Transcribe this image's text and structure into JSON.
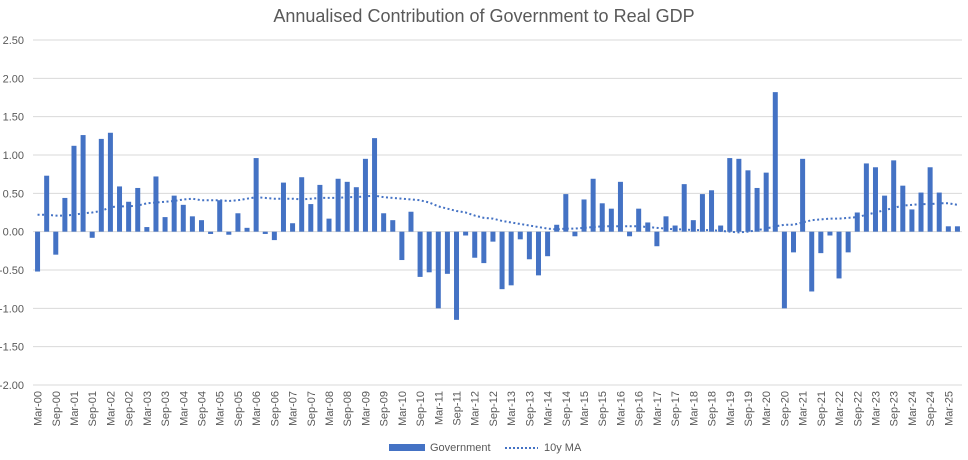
{
  "chart_data": {
    "type": "bar",
    "title": "Annualised Contribution of Government to Real GDP",
    "xlabel": "",
    "ylabel": "",
    "ylim": [
      -2.0,
      2.5
    ],
    "yticks": [
      "2.50",
      "2.00",
      "1.50",
      "1.00",
      "0.50",
      "0.00",
      "-0.50",
      "-1.00",
      "-1.50",
      "-2.00"
    ],
    "ytick_values": [
      2.5,
      2.0,
      1.5,
      1.0,
      0.5,
      0.0,
      -0.5,
      -1.0,
      -1.5,
      -2.0
    ],
    "grid": true,
    "legend_position": "bottom",
    "colors": {
      "bar": "#4472C4",
      "line": "#4472C4",
      "grid": "#d9d9d9",
      "text": "#595959"
    },
    "x_tick_labels": [
      "Mar-00",
      "Sep-00",
      "Mar-01",
      "Sep-01",
      "Mar-02",
      "Sep-02",
      "Mar-03",
      "Sep-03",
      "Mar-04",
      "Sep-04",
      "Mar-05",
      "Sep-05",
      "Mar-06",
      "Sep-06",
      "Mar-07",
      "Sep-07",
      "Mar-08",
      "Sep-08",
      "Mar-09",
      "Sep-09",
      "Mar-10",
      "Sep-10",
      "Mar-11",
      "Sep-11",
      "Mar-12",
      "Sep-12",
      "Mar-13",
      "Sep-13",
      "Mar-14",
      "Sep-14",
      "Mar-15",
      "Sep-15",
      "Mar-16",
      "Sep-16",
      "Mar-17",
      "Sep-17",
      "Mar-18",
      "Sep-18",
      "Mar-19",
      "Sep-19",
      "Mar-20",
      "Sep-20",
      "Mar-21",
      "Sep-21",
      "Mar-22",
      "Sep-22",
      "Mar-23",
      "Sep-23",
      "Mar-24",
      "Sep-24",
      "Mar-25"
    ],
    "series": [
      {
        "name": "Government",
        "type": "bar",
        "values": [
          -0.52,
          0.73,
          -0.3,
          0.44,
          1.12,
          1.26,
          -0.08,
          1.21,
          1.29,
          0.59,
          0.39,
          0.57,
          0.06,
          0.72,
          0.19,
          0.47,
          0.35,
          0.2,
          0.15,
          -0.03,
          0.41,
          -0.04,
          0.24,
          0.05,
          0.96,
          -0.03,
          -0.11,
          0.64,
          0.11,
          0.71,
          0.36,
          0.61,
          0.17,
          0.69,
          0.65,
          0.58,
          0.95,
          1.22,
          0.24,
          0.15,
          -0.37,
          0.26,
          -0.59,
          -0.53,
          -1.0,
          -0.55,
          -1.15,
          -0.05,
          -0.34,
          -0.41,
          -0.13,
          -0.75,
          -0.7,
          -0.1,
          -0.36,
          -0.57,
          -0.32,
          0.09,
          0.49,
          -0.06,
          0.42,
          0.69,
          0.37,
          0.3,
          0.65,
          -0.06,
          0.3,
          0.12,
          -0.19,
          0.2,
          0.08,
          0.62,
          0.15,
          0.49,
          0.54,
          0.08,
          0.96,
          0.95,
          0.8,
          0.57,
          0.77,
          1.82,
          -1.0,
          -0.27,
          0.95,
          -0.78,
          -0.28,
          -0.05,
          -0.61,
          -0.27,
          0.25,
          0.89,
          0.84,
          0.47,
          0.93,
          0.6,
          0.29,
          0.51,
          0.84,
          0.51,
          0.07,
          0.07
        ]
      },
      {
        "name": "10y MA",
        "type": "line",
        "style": "dotted",
        "values": [
          0.22,
          0.22,
          0.21,
          0.21,
          0.22,
          0.24,
          0.25,
          0.27,
          0.32,
          0.33,
          0.33,
          0.34,
          0.37,
          0.38,
          0.39,
          0.4,
          0.42,
          0.43,
          0.41,
          0.41,
          0.41,
          0.4,
          0.41,
          0.43,
          0.45,
          0.44,
          0.43,
          0.43,
          0.43,
          0.42,
          0.43,
          0.44,
          0.44,
          0.44,
          0.45,
          0.45,
          0.46,
          0.47,
          0.45,
          0.44,
          0.43,
          0.42,
          0.41,
          0.38,
          0.33,
          0.3,
          0.27,
          0.25,
          0.21,
          0.18,
          0.17,
          0.14,
          0.12,
          0.1,
          0.08,
          0.06,
          0.04,
          0.03,
          0.04,
          0.04,
          0.05,
          0.06,
          0.07,
          0.07,
          0.07,
          0.07,
          0.07,
          0.06,
          0.05,
          0.04,
          0.03,
          0.03,
          0.02,
          0.02,
          0.02,
          0.01,
          0.0,
          -0.01,
          0.0,
          0.02,
          0.04,
          0.07,
          0.09,
          0.09,
          0.12,
          0.15,
          0.16,
          0.17,
          0.17,
          0.18,
          0.19,
          0.22,
          0.25,
          0.28,
          0.31,
          0.34,
          0.35,
          0.36,
          0.36,
          0.37,
          0.37,
          0.35
        ]
      }
    ]
  }
}
